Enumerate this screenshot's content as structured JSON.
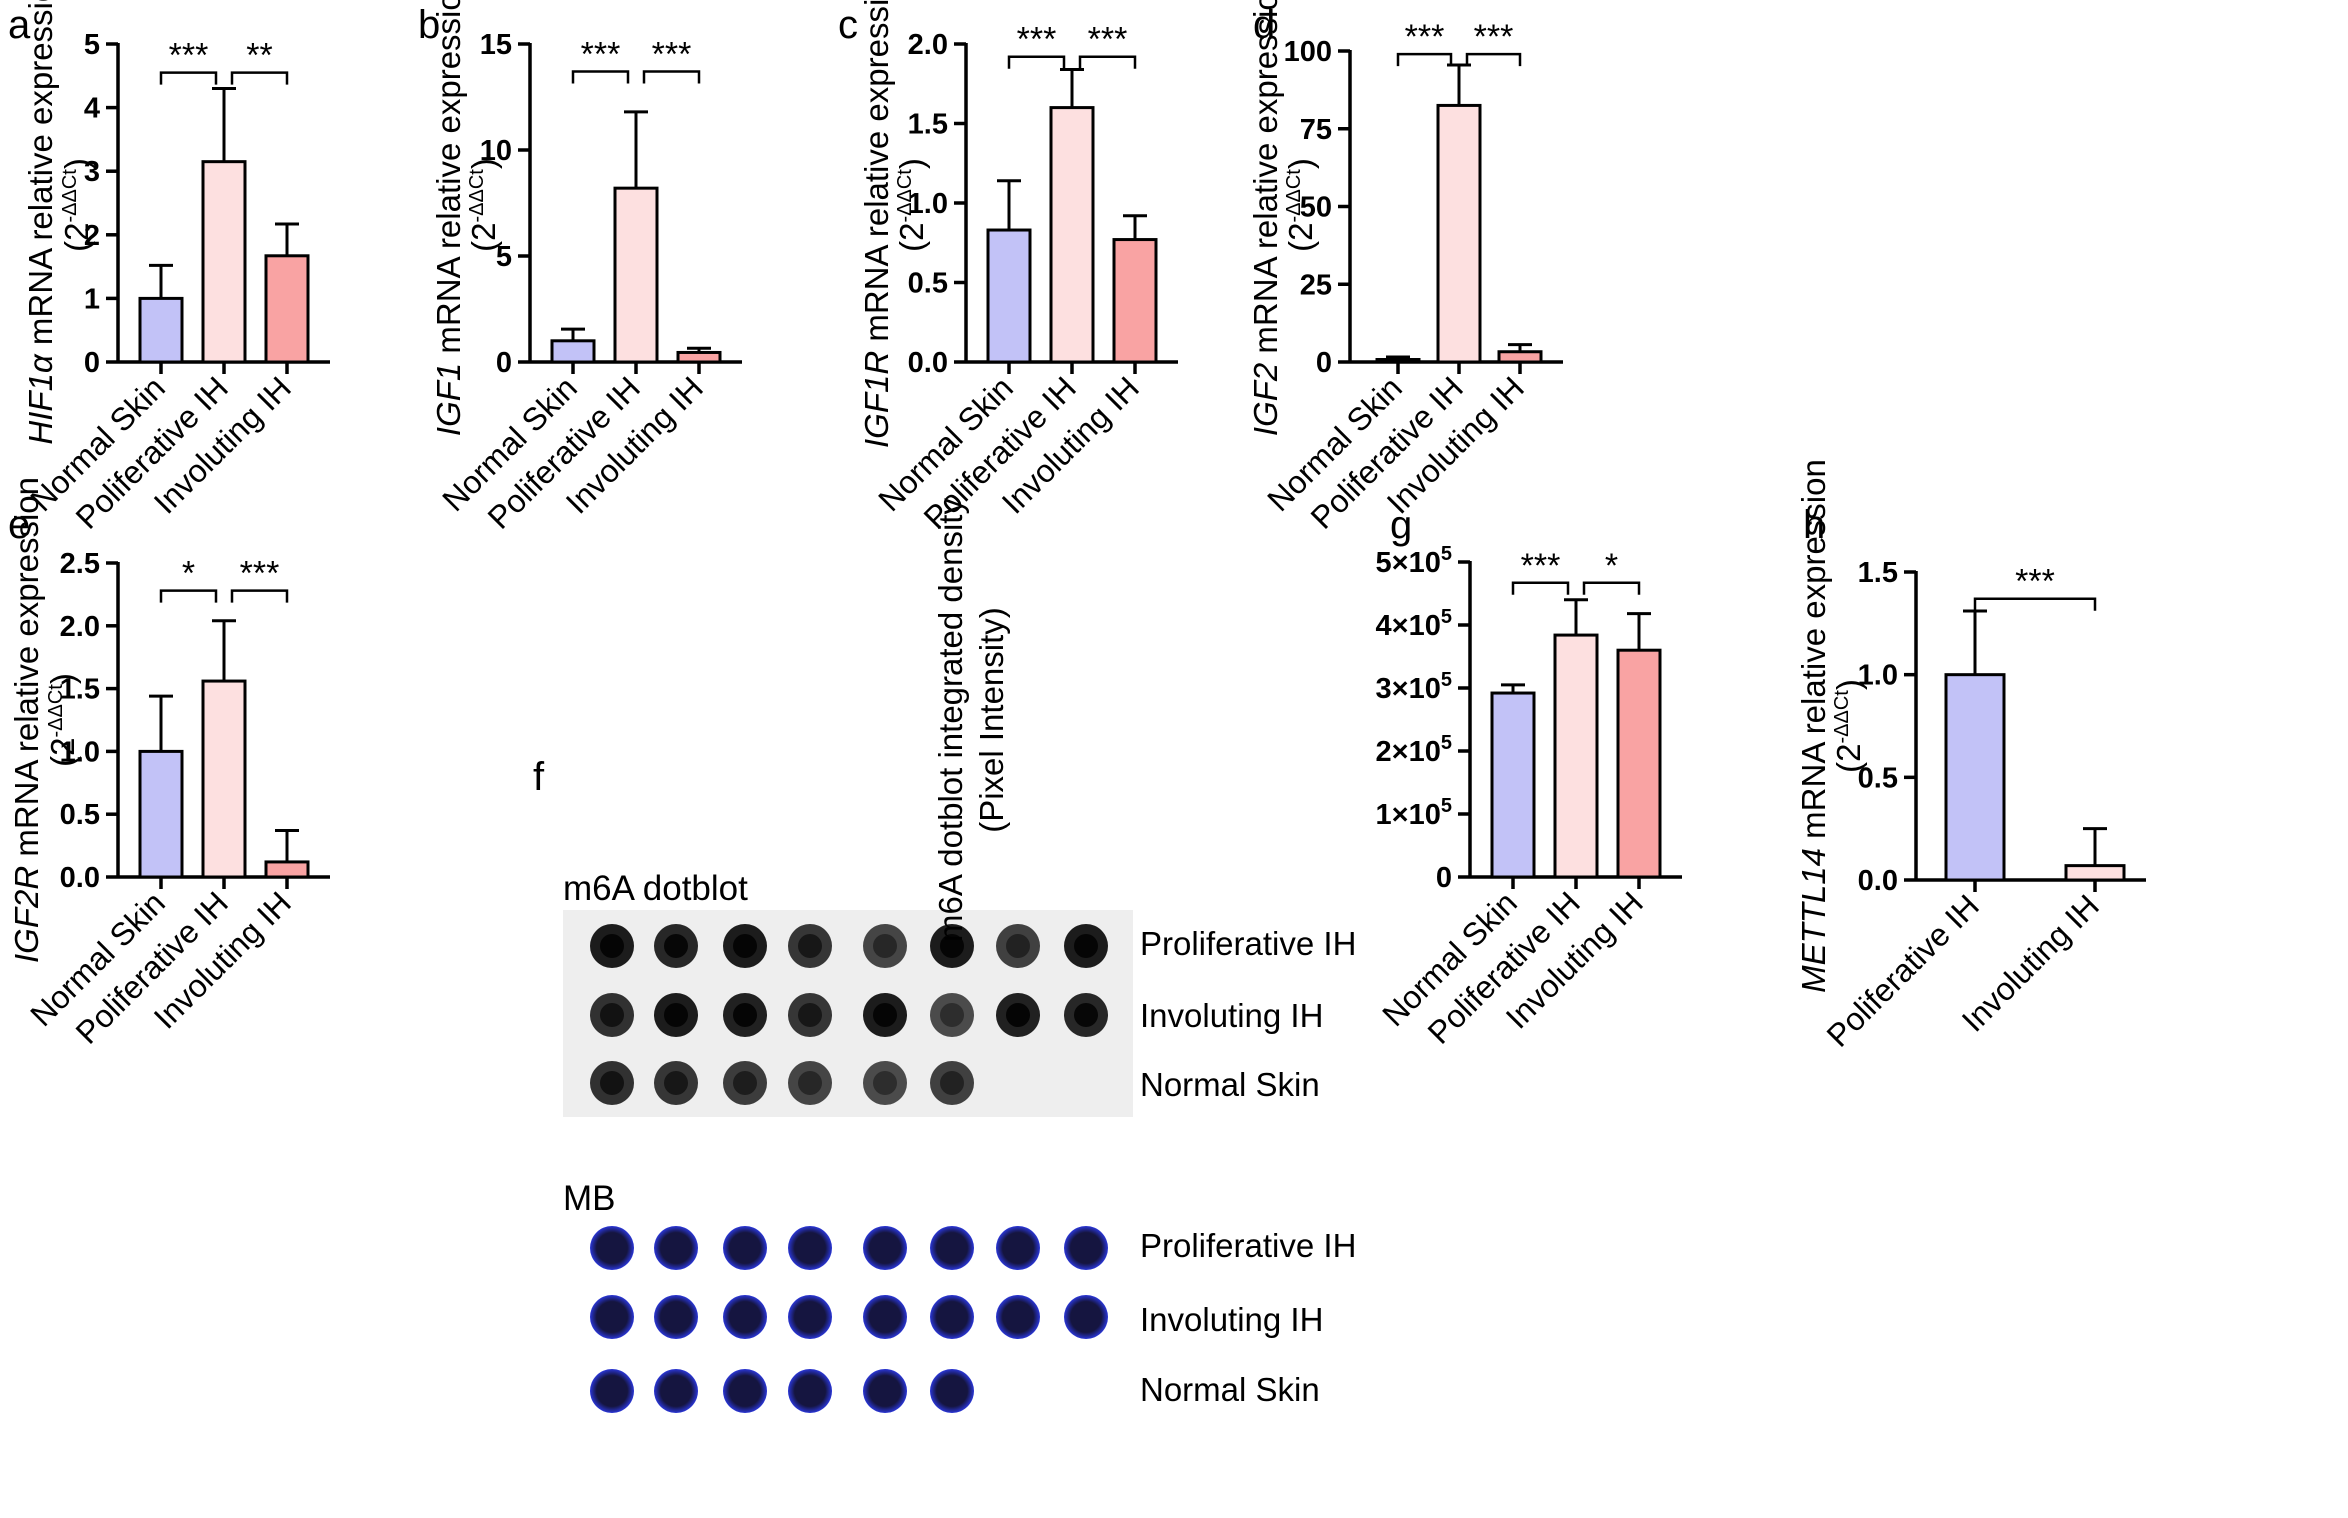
{
  "figure": {
    "colors": {
      "normal_skin": "#C2C2F7",
      "proliferative_ih": "#FDE0E0",
      "involuting_ih": "#F9A3A3",
      "axis": "#000000",
      "dotblot_bg": "#EEEEEE",
      "mb_dot": "#151540",
      "mb_halo": "#2A36D6"
    },
    "dotblot_panel": {
      "letter": "f",
      "m6a_title": "m6A dotblot",
      "mb_title": "MB",
      "row_labels": [
        "Proliferative IH",
        "Involuting IH",
        "Normal Skin"
      ],
      "m6a_dot_intensity": [
        [
          0.95,
          0.85,
          0.95,
          0.7,
          0.55,
          0.95,
          0.6,
          0.95
        ],
        [
          0.75,
          0.95,
          0.9,
          0.7,
          0.95,
          0.5,
          0.9,
          0.85
        ],
        [
          0.75,
          0.7,
          0.65,
          0.55,
          0.5,
          0.6
        ]
      ],
      "mb_dot_counts": [
        8,
        8,
        6
      ]
    }
  },
  "chart_data": [
    {
      "letter": "a",
      "type": "bar",
      "ylabel_gene": "HIF1α",
      "ylabel_rest": " mRNA relative expression",
      "ylabel_unit_base": "(2",
      "ylabel_unit_sup": "-ΔΔCt",
      "ylabel_unit_end": ")",
      "categories": [
        "Normal Skin",
        "Poliferative IH",
        "Involuting IH"
      ],
      "values": [
        1.0,
        3.15,
        1.67
      ],
      "errors": [
        0.52,
        1.15,
        0.5
      ],
      "ylim": [
        0,
        5
      ],
      "ticks": [
        0,
        1,
        2,
        3,
        4,
        5
      ],
      "tick_labels": [
        "0",
        "1",
        "2",
        "3",
        "4",
        "5"
      ],
      "significance": [
        {
          "from": 0,
          "to": 1,
          "label": "***",
          "y": 4.55
        },
        {
          "from": 1,
          "to": 2,
          "label": "**",
          "y": 4.55
        }
      ]
    },
    {
      "letter": "b",
      "type": "bar",
      "ylabel_gene": "IGF1",
      "ylabel_rest": " mRNA relative expression",
      "ylabel_unit_base": "(2",
      "ylabel_unit_sup": "-ΔΔCt",
      "ylabel_unit_end": ")",
      "categories": [
        "Normal Skin",
        "Poliferative IH",
        "Involuting IH"
      ],
      "values": [
        1.0,
        8.2,
        0.45
      ],
      "errors": [
        0.55,
        3.6,
        0.2
      ],
      "ylim": [
        0,
        15
      ],
      "ticks": [
        0,
        5,
        10,
        15
      ],
      "tick_labels": [
        "0",
        "5",
        "10",
        "15"
      ],
      "significance": [
        {
          "from": 0,
          "to": 1,
          "label": "***",
          "y": 13.7
        },
        {
          "from": 1,
          "to": 2,
          "label": "***",
          "y": 13.7
        }
      ]
    },
    {
      "letter": "c",
      "type": "bar",
      "ylabel_gene": "IGF1R",
      "ylabel_rest": " mRNA relative expression",
      "ylabel_unit_base": "(2",
      "ylabel_unit_sup": "-ΔΔCt",
      "ylabel_unit_end": ")",
      "categories": [
        "Normal Skin",
        "Poliferative IH",
        "Involuting IH"
      ],
      "values": [
        0.83,
        1.6,
        0.77
      ],
      "errors": [
        0.31,
        0.24,
        0.15
      ],
      "ylim": [
        0,
        2.0
      ],
      "ticks": [
        0,
        0.5,
        1.0,
        1.5,
        2.0
      ],
      "tick_labels": [
        "0.0",
        "0.5",
        "1.0",
        "1.5",
        "2.0"
      ],
      "significance": [
        {
          "from": 0,
          "to": 1,
          "label": "***",
          "y": 1.92
        },
        {
          "from": 1,
          "to": 2,
          "label": "***",
          "y": 1.92
        }
      ]
    },
    {
      "letter": "d",
      "type": "bar",
      "ylabel_gene": "IGF2",
      "ylabel_rest": " mRNA relative expression",
      "ylabel_unit_base": "(2",
      "ylabel_unit_sup": "-ΔΔCt",
      "ylabel_unit_end": ")",
      "categories": [
        "Normal Skin",
        "Poliferative IH",
        "Involuting IH"
      ],
      "values": [
        0.8,
        82.5,
        3.3
      ],
      "errors": [
        0.8,
        13.0,
        2.3
      ],
      "ylim": [
        0,
        100
      ],
      "ticks": [
        0,
        25,
        50,
        75,
        100
      ],
      "tick_labels": [
        "0",
        "25",
        "50",
        "75",
        "100"
      ],
      "significance": [
        {
          "from": 0,
          "to": 1,
          "label": "***",
          "y": 99
        },
        {
          "from": 1,
          "to": 2,
          "label": "***",
          "y": 99
        }
      ]
    },
    {
      "letter": "e",
      "type": "bar",
      "ylabel_gene": "IGF2R",
      "ylabel_rest": " mRNA relative expression",
      "ylabel_unit_base": "(2",
      "ylabel_unit_sup": "-ΔΔCt",
      "ylabel_unit_end": ")",
      "categories": [
        "Normal Skin",
        "Poliferative IH",
        "Involuting IH"
      ],
      "values": [
        1.0,
        1.56,
        0.12
      ],
      "errors": [
        0.44,
        0.48,
        0.25
      ],
      "ylim": [
        0,
        2.5
      ],
      "ticks": [
        0,
        0.5,
        1.0,
        1.5,
        2.0,
        2.5
      ],
      "tick_labels": [
        "0.0",
        "0.5",
        "1.0",
        "1.5",
        "2.0",
        "2.5"
      ],
      "significance": [
        {
          "from": 0,
          "to": 1,
          "label": "*",
          "y": 2.28
        },
        {
          "from": 1,
          "to": 2,
          "label": "***",
          "y": 2.28
        }
      ]
    },
    {
      "letter": "g",
      "type": "bar",
      "ylabel_line1": "m6A dotblot integrated density",
      "ylabel_line2": "(Pixel Intensity)",
      "categories": [
        "Normal Skin",
        "Poliferative IH",
        "Involuting IH"
      ],
      "values": [
        292000,
        384000,
        360000
      ],
      "errors": [
        13000,
        56000,
        58000
      ],
      "ylim": [
        0,
        500000
      ],
      "ticks": [
        0,
        100000,
        200000,
        300000,
        400000,
        500000
      ],
      "tick_labels": [
        "0",
        "1×10",
        "2×10",
        "3×10",
        "4×10",
        "5×10"
      ],
      "tick_exponent": "5",
      "significance": [
        {
          "from": 0,
          "to": 1,
          "label": "***",
          "y": 467000
        },
        {
          "from": 1,
          "to": 2,
          "label": "*",
          "y": 467000
        }
      ]
    },
    {
      "letter": "h",
      "type": "bar",
      "ylabel_gene": "METTL14",
      "ylabel_rest": " mRNA relative expression",
      "ylabel_unit_base": "(2",
      "ylabel_unit_sup": "-ΔΔCt",
      "ylabel_unit_end": ")",
      "categories": [
        "Poliferative IH",
        "Involuting IH"
      ],
      "values": [
        1.0,
        0.07
      ],
      "errors": [
        0.31,
        0.18
      ],
      "ylim": [
        0,
        1.5
      ],
      "ticks": [
        0,
        0.5,
        1.0,
        1.5
      ],
      "tick_labels": [
        "0.0",
        "0.5",
        "1.0",
        "1.5"
      ],
      "significance": [
        {
          "from": 0,
          "to": 1,
          "label": "***",
          "y": 1.37
        }
      ]
    }
  ]
}
